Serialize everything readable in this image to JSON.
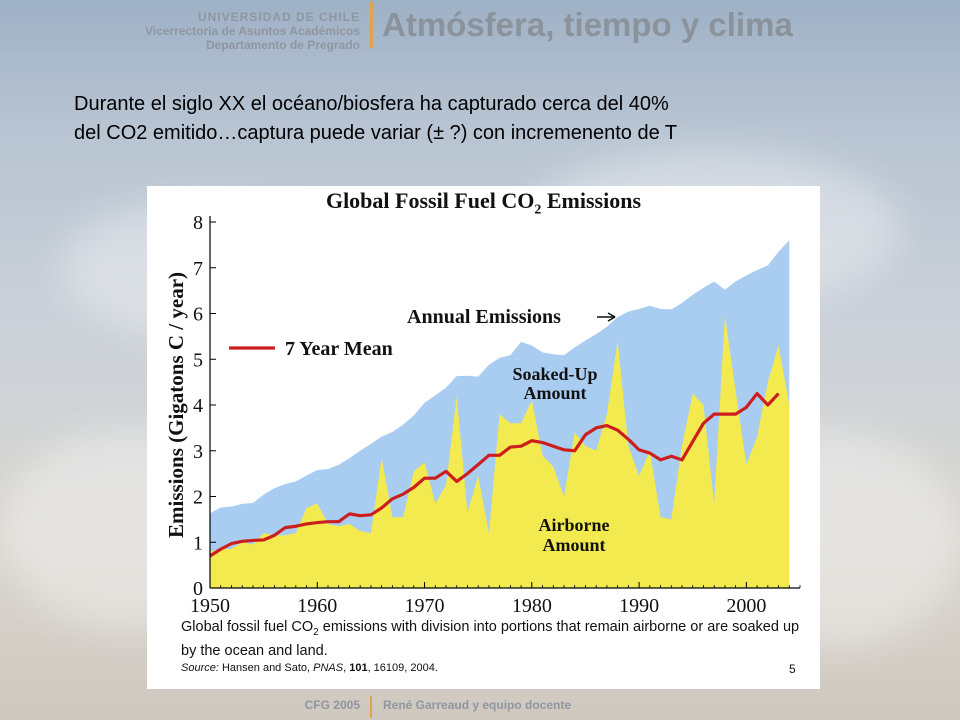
{
  "header": {
    "institution": "UNIVERSIDAD DE CHILE",
    "vicerrectoria": "Vicerrectoría de Asuntos Académicos",
    "departamento": "Departamento de Pregrado",
    "title": "Atmósfera, tiempo y clima"
  },
  "slide_text": {
    "line1": "Durante el siglo XX el océano/biosfera ha capturado cerca del 40%",
    "line2": "del CO2 emitido…captura puede variar (± ?) con incremenento de T"
  },
  "figure": {
    "caption_pre": "Global fossil fuel CO",
    "caption_sub": "2",
    "caption_post": " emissions with division into portions that remain airborne or are soaked up by the ocean and land.",
    "source_label": "Source:",
    "source_authors": " Hansen and Sato, ",
    "source_journal": "PNAS",
    "source_sep": ", ",
    "source_volume": "101",
    "source_rest": ", 16109, 2004.",
    "page_number": "5"
  },
  "footer": {
    "left": "CFG 2005",
    "right": "René Garreaud y equipo docente"
  },
  "colors": {
    "emissions_fill": "#a9cdf0",
    "airborne_fill": "#f2ea4e",
    "mean_line": "#cc1e1e"
  },
  "chart_data": {
    "type": "area",
    "title_pre": "Global Fossil Fuel CO",
    "title_sub": "2",
    "title_post": " Emissions",
    "ylabel": "Emissions (Gigatons C / year)",
    "xlabel": "",
    "xlim": [
      1950,
      2005
    ],
    "ylim": [
      0,
      8
    ],
    "xticks": [
      1950,
      1960,
      1970,
      1980,
      1990,
      2000
    ],
    "yticks": [
      0,
      1,
      2,
      3,
      4,
      5,
      6,
      7,
      8
    ],
    "annotations": {
      "annual": "Annual Emissions",
      "soaked_line1": "Soaked-Up",
      "soaked_line2": "Amount",
      "airborne_line1": "Airborne",
      "airborne_line2": "Amount"
    },
    "series": [
      {
        "name": "Annual Emissions",
        "x": [
          1950,
          1951,
          1952,
          1953,
          1954,
          1955,
          1956,
          1957,
          1958,
          1959,
          1960,
          1961,
          1962,
          1963,
          1964,
          1965,
          1966,
          1967,
          1968,
          1969,
          1970,
          1971,
          1972,
          1973,
          1974,
          1975,
          1976,
          1977,
          1978,
          1979,
          1980,
          1981,
          1982,
          1983,
          1984,
          1985,
          1986,
          1987,
          1988,
          1989,
          1990,
          1991,
          1992,
          1993,
          1994,
          1995,
          1996,
          1997,
          1998,
          1999,
          2000,
          2001,
          2002,
          2003,
          2004
        ],
        "values": [
          1.63,
          1.76,
          1.78,
          1.84,
          1.86,
          2.04,
          2.18,
          2.27,
          2.33,
          2.46,
          2.58,
          2.6,
          2.69,
          2.84,
          3.0,
          3.15,
          3.31,
          3.41,
          3.57,
          3.77,
          4.05,
          4.21,
          4.38,
          4.63,
          4.64,
          4.62,
          4.88,
          5.03,
          5.09,
          5.38,
          5.3,
          5.15,
          5.11,
          5.09,
          5.26,
          5.41,
          5.55,
          5.71,
          5.92,
          6.04,
          6.1,
          6.17,
          6.1,
          6.09,
          6.23,
          6.41,
          6.56,
          6.7,
          6.52,
          6.7,
          6.83,
          6.95,
          7.05,
          7.35,
          7.6
        ]
      },
      {
        "name": "Airborne Amount",
        "x": [
          1950,
          1951,
          1952,
          1953,
          1954,
          1955,
          1956,
          1957,
          1958,
          1959,
          1960,
          1961,
          1962,
          1963,
          1964,
          1965,
          1966,
          1967,
          1968,
          1969,
          1970,
          1971,
          1972,
          1973,
          1974,
          1975,
          1976,
          1977,
          1978,
          1979,
          1980,
          1981,
          1982,
          1983,
          1984,
          1985,
          1986,
          1987,
          1988,
          1989,
          1990,
          1991,
          1992,
          1993,
          1994,
          1995,
          1996,
          1997,
          1998,
          1999,
          2000,
          2001,
          2002,
          2003,
          2004
        ],
        "values": [
          0.8,
          0.85,
          0.85,
          1.0,
          0.95,
          1.2,
          1.15,
          1.15,
          1.2,
          1.75,
          1.85,
          1.4,
          1.35,
          1.4,
          1.25,
          1.2,
          2.85,
          1.55,
          1.55,
          2.55,
          2.75,
          1.85,
          2.25,
          4.2,
          1.65,
          2.45,
          1.2,
          3.8,
          3.6,
          3.6,
          4.1,
          2.9,
          2.65,
          2.0,
          3.4,
          3.1,
          3.0,
          3.8,
          5.4,
          3.1,
          2.45,
          3.0,
          1.55,
          1.5,
          3.1,
          4.25,
          4.0,
          1.85,
          5.95,
          4.3,
          2.7,
          3.3,
          4.5,
          5.3,
          4.0
        ]
      },
      {
        "name": "7 Year Mean",
        "x": [
          1950,
          1951,
          1952,
          1953,
          1954,
          1955,
          1956,
          1957,
          1958,
          1959,
          1960,
          1961,
          1962,
          1963,
          1964,
          1965,
          1966,
          1967,
          1968,
          1969,
          1970,
          1971,
          1972,
          1973,
          1974,
          1975,
          1976,
          1977,
          1978,
          1979,
          1980,
          1981,
          1982,
          1983,
          1984,
          1985,
          1986,
          1987,
          1988,
          1989,
          1990,
          1991,
          1992,
          1993,
          1994,
          1995,
          1996,
          1997,
          1998,
          1999,
          2000,
          2001,
          2002,
          2003
        ],
        "values": [
          0.7,
          0.85,
          0.97,
          1.02,
          1.04,
          1.05,
          1.15,
          1.32,
          1.35,
          1.4,
          1.43,
          1.45,
          1.45,
          1.62,
          1.58,
          1.6,
          1.75,
          1.95,
          2.05,
          2.2,
          2.4,
          2.4,
          2.55,
          2.33,
          2.5,
          2.7,
          2.9,
          2.9,
          3.08,
          3.1,
          3.22,
          3.18,
          3.1,
          3.02,
          3.0,
          3.35,
          3.5,
          3.55,
          3.45,
          3.25,
          3.02,
          2.95,
          2.8,
          2.88,
          2.8,
          3.2,
          3.6,
          3.8,
          3.8,
          3.8,
          3.95,
          4.25,
          4.0,
          4.25
        ]
      }
    ],
    "legend": "top-left"
  }
}
